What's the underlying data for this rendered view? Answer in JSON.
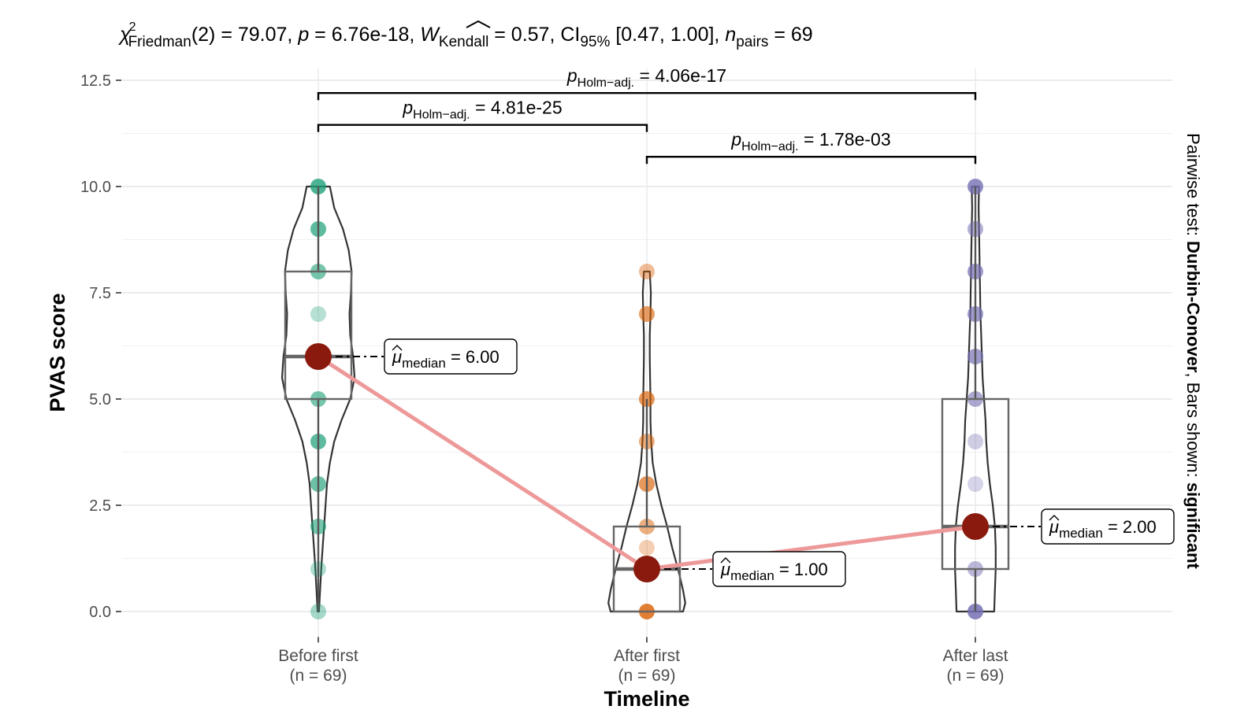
{
  "chart_data": {
    "type": "violin",
    "subtitle": {
      "chi": "χ",
      "chi_sup": "2",
      "chi_sub": "Friedman",
      "df_part": "(2) = 79.07, ",
      "p_symbol": "p",
      "p_part": " = 6.76e-18, ",
      "w_symbol": "W",
      "w_sub": "Kendall",
      "w_part": " = 0.57, CI",
      "ci_sub": "95%",
      "ci_part": " [0.47, 1.00], ",
      "n_symbol": "n",
      "n_sub": "pairs",
      "n_part": " = 69"
    },
    "xlabel": "Timeline",
    "ylabel": "PVAS score",
    "ylim": [
      -0.6,
      12.5
    ],
    "yticks": [
      0.0,
      2.5,
      5.0,
      7.5,
      10.0,
      12.5
    ],
    "ytick_labels": [
      "0.0",
      "2.5",
      "5.0",
      "7.5",
      "10.0",
      "12.5"
    ],
    "categories": [
      {
        "label": "Before first",
        "n_label": "(n = 69)",
        "color": "#1b9e77",
        "points": [
          {
            "y": 10,
            "opacity": 0.78
          },
          {
            "y": 9,
            "opacity": 0.7
          },
          {
            "y": 8,
            "opacity": 0.6
          },
          {
            "y": 7,
            "opacity": 0.32
          },
          {
            "y": 6,
            "opacity": 0.55
          },
          {
            "y": 5,
            "opacity": 0.6
          },
          {
            "y": 4,
            "opacity": 0.7
          },
          {
            "y": 3,
            "opacity": 0.65
          },
          {
            "y": 2,
            "opacity": 0.6
          },
          {
            "y": 1,
            "opacity": 0.35
          },
          {
            "y": 0,
            "opacity": 0.4
          }
        ],
        "box": {
          "q1": 5,
          "median": 6,
          "q3": 8,
          "whisker_low": 0,
          "whisker_high": 10
        },
        "violin": [
          [
            0,
            0.01
          ],
          [
            0.5,
            0.025
          ],
          [
            1,
            0.04
          ],
          [
            1.5,
            0.06
          ],
          [
            2,
            0.08
          ],
          [
            2.5,
            0.1
          ],
          [
            3,
            0.12
          ],
          [
            3.5,
            0.16
          ],
          [
            4,
            0.22
          ],
          [
            4.5,
            0.32
          ],
          [
            5,
            0.44
          ],
          [
            5.5,
            0.5
          ],
          [
            6,
            0.48
          ],
          [
            6.5,
            0.44
          ],
          [
            7,
            0.43
          ],
          [
            7.5,
            0.45
          ],
          [
            8,
            0.46
          ],
          [
            8.5,
            0.42
          ],
          [
            9,
            0.34
          ],
          [
            9.5,
            0.22
          ],
          [
            10,
            0.16
          ]
        ],
        "median_label_sym": "μ",
        "median_label_sub": "median",
        "median_label_val": " = 6.00"
      },
      {
        "label": "After first",
        "n_label": "(n = 69)",
        "color": "#d95f02",
        "points": [
          {
            "y": 8,
            "opacity": 0.42
          },
          {
            "y": 7,
            "opacity": 0.6
          },
          {
            "y": 5,
            "opacity": 0.65
          },
          {
            "y": 4,
            "opacity": 0.5
          },
          {
            "y": 3,
            "opacity": 0.65
          },
          {
            "y": 2,
            "opacity": 0.5
          },
          {
            "y": 1.5,
            "opacity": 0.3
          },
          {
            "y": 1,
            "opacity": 0.55
          },
          {
            "y": 0,
            "opacity": 0.8
          }
        ],
        "box": {
          "q1": 0,
          "median": 1,
          "q3": 2,
          "whisker_low": 0,
          "whisker_high": 5
        },
        "violin": [
          [
            0,
            0.5
          ],
          [
            0.2,
            0.53
          ],
          [
            0.5,
            0.5
          ],
          [
            1,
            0.43
          ],
          [
            1.5,
            0.35
          ],
          [
            2,
            0.28
          ],
          [
            2.5,
            0.2
          ],
          [
            3,
            0.13
          ],
          [
            3.5,
            0.08
          ],
          [
            4,
            0.06
          ],
          [
            4.5,
            0.05
          ],
          [
            5,
            0.05
          ],
          [
            5.5,
            0.045
          ],
          [
            6,
            0.04
          ],
          [
            6.5,
            0.04
          ],
          [
            7,
            0.05
          ],
          [
            7.5,
            0.055
          ],
          [
            8,
            0.04
          ]
        ],
        "median_label_sym": "μ",
        "median_label_sub": "median",
        "median_label_val": " = 1.00"
      },
      {
        "label": "After last",
        "n_label": "(n = 69)",
        "color": "#7570b3",
        "points": [
          {
            "y": 10,
            "opacity": 0.8
          },
          {
            "y": 9,
            "opacity": 0.55
          },
          {
            "y": 8,
            "opacity": 0.7
          },
          {
            "y": 7,
            "opacity": 0.7
          },
          {
            "y": 6,
            "opacity": 0.7
          },
          {
            "y": 5,
            "opacity": 0.6
          },
          {
            "y": 4,
            "opacity": 0.35
          },
          {
            "y": 3,
            "opacity": 0.3
          },
          {
            "y": 2,
            "opacity": 0.55
          },
          {
            "y": 1,
            "opacity": 0.5
          },
          {
            "y": 0,
            "opacity": 0.85
          }
        ],
        "box": {
          "q1": 1,
          "median": 2,
          "q3": 5,
          "whisker_low": 0,
          "whisker_high": 10
        },
        "violin": [
          [
            0,
            0.26
          ],
          [
            0.5,
            0.27
          ],
          [
            1,
            0.28
          ],
          [
            1.5,
            0.28
          ],
          [
            2,
            0.27
          ],
          [
            2.5,
            0.24
          ],
          [
            3,
            0.2
          ],
          [
            3.5,
            0.17
          ],
          [
            4,
            0.15
          ],
          [
            4.5,
            0.14
          ],
          [
            5,
            0.12
          ],
          [
            5.5,
            0.1
          ],
          [
            6,
            0.09
          ],
          [
            6.5,
            0.08
          ],
          [
            7,
            0.07
          ],
          [
            7.5,
            0.065
          ],
          [
            8,
            0.06
          ],
          [
            8.5,
            0.055
          ],
          [
            9,
            0.05
          ],
          [
            9.5,
            0.045
          ],
          [
            10,
            0.05
          ]
        ],
        "median_label_sym": "μ",
        "median_label_sub": "median",
        "median_label_val": " = 2.00"
      }
    ],
    "medians": [
      6.0,
      1.0,
      2.0
    ],
    "median_color": "#8b1a0e",
    "median_line_color": "#ee9999",
    "comparisons": [
      {
        "from": 0,
        "to": 2,
        "y": 12.2,
        "p_label": "p",
        "p_sub": "Holm−adj.",
        "p_value": " = 4.06e-17"
      },
      {
        "from": 0,
        "to": 1,
        "y": 11.45,
        "p_label": "p",
        "p_sub": "Holm−adj.",
        "p_value": " = 4.81e-25"
      },
      {
        "from": 1,
        "to": 2,
        "y": 10.7,
        "p_label": "p",
        "p_sub": "Holm−adj.",
        "p_value": " = 1.78e-03"
      }
    ],
    "caption": {
      "prefix": "Pairwise test: ",
      "test": "Durbin-Conover",
      "middle": ", Bars shown: ",
      "shown": "significant"
    },
    "grid": true
  }
}
